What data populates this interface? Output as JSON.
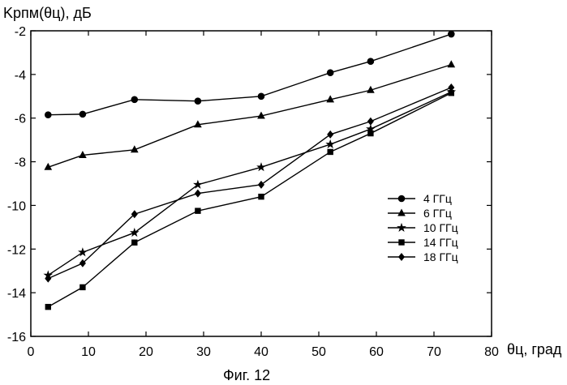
{
  "chart_data": {
    "type": "line",
    "ylabel": "Kрпм(θц), дБ",
    "xlabel": "θц, град",
    "caption": "Фиг. 12",
    "xlim": [
      0,
      80
    ],
    "ylim": [
      -16,
      -2
    ],
    "xticks": [
      0,
      10,
      20,
      30,
      40,
      50,
      60,
      70,
      80
    ],
    "yticks": [
      -16,
      -14,
      -12,
      -10,
      -8,
      -6,
      -4,
      -2
    ],
    "grid": false,
    "legend_position": "right",
    "series": [
      {
        "name": "4 ГГц",
        "marker": "circle",
        "x": [
          3,
          9,
          18,
          29,
          40,
          52,
          59,
          73
        ],
        "y": [
          -5.85,
          -5.82,
          -5.15,
          -5.22,
          -5.0,
          -3.92,
          -3.4,
          -2.15
        ]
      },
      {
        "name": "6 ГГц",
        "marker": "triangle",
        "x": [
          3,
          9,
          18,
          29,
          40,
          52,
          59,
          73
        ],
        "y": [
          -8.25,
          -7.7,
          -7.45,
          -6.3,
          -5.9,
          -5.15,
          -4.72,
          -3.55
        ]
      },
      {
        "name": "10 ГГц",
        "marker": "star",
        "x": [
          3,
          9,
          18,
          29,
          40,
          52,
          59,
          73
        ],
        "y": [
          -13.2,
          -12.15,
          -11.25,
          -9.05,
          -8.25,
          -7.2,
          -6.5,
          -4.8
        ]
      },
      {
        "name": "14 ГГц",
        "marker": "square",
        "x": [
          3,
          9,
          18,
          29,
          40,
          52,
          59,
          73
        ],
        "y": [
          -14.65,
          -13.75,
          -11.7,
          -10.25,
          -9.6,
          -7.55,
          -6.7,
          -4.85
        ]
      },
      {
        "name": "18 ГГц",
        "marker": "diamond",
        "x": [
          3,
          9,
          18,
          29,
          40,
          52,
          59,
          73
        ],
        "y": [
          -13.35,
          -12.65,
          -10.4,
          -9.45,
          -9.05,
          -6.75,
          -6.15,
          -4.6
        ]
      }
    ]
  }
}
